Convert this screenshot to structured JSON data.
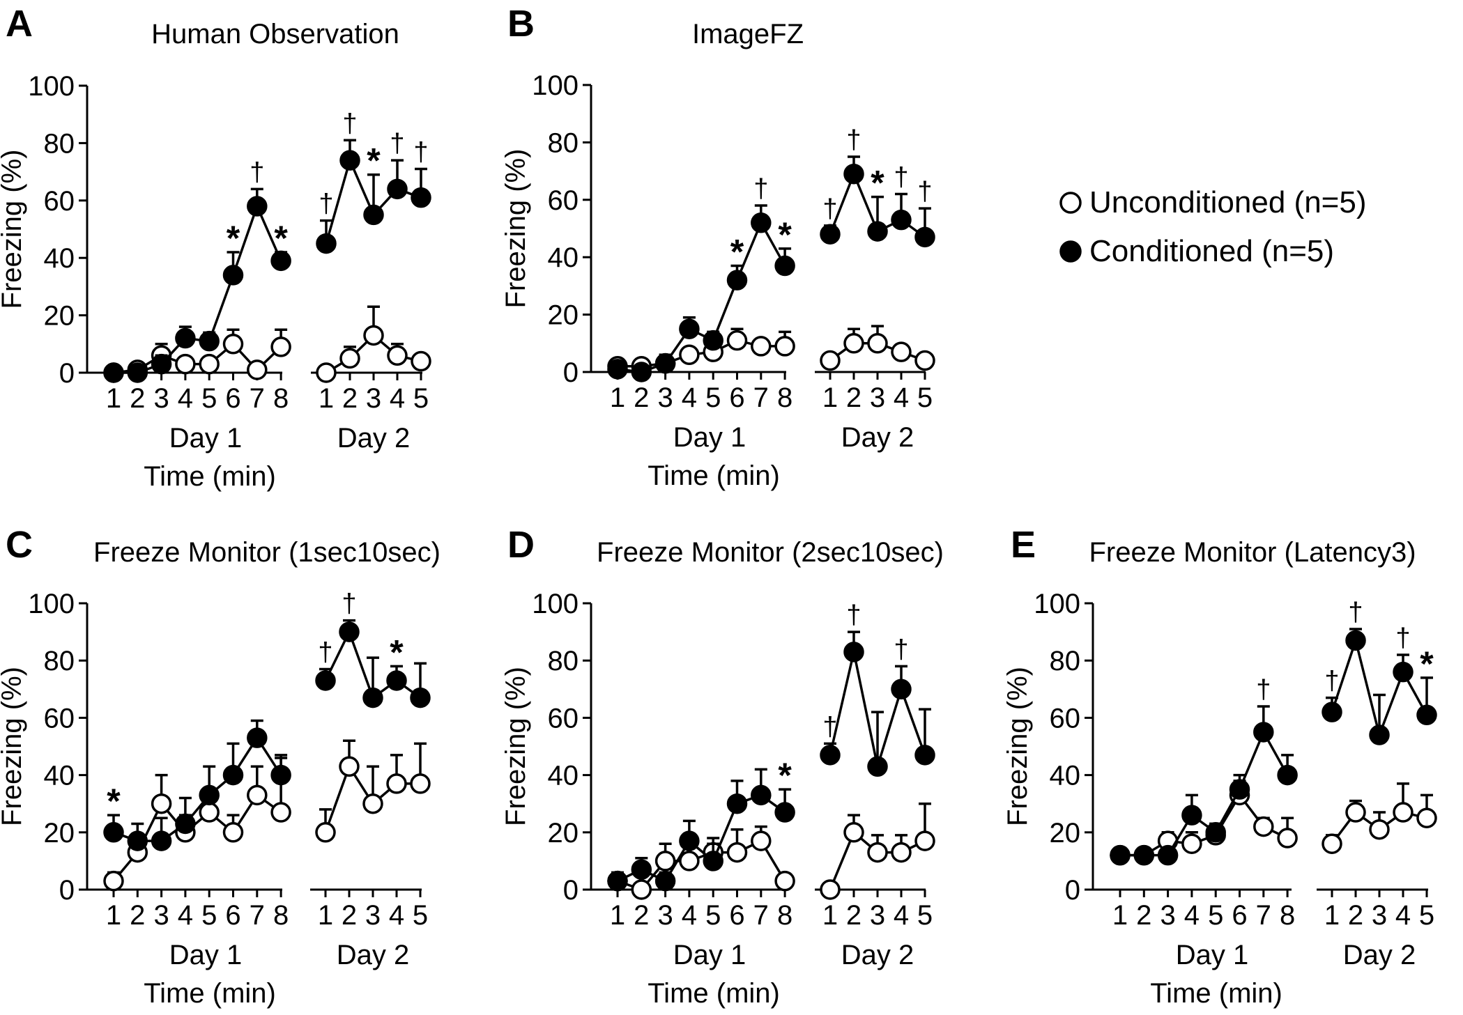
{
  "figure": {
    "legend": {
      "unconditioned": "Unconditioned (n=5)",
      "conditioned": "Conditioned (n=5)"
    },
    "colors": {
      "ink": "#000000",
      "open_fill": "#ffffff",
      "closed_fill": "#000000"
    }
  },
  "chart_data": [
    {
      "type": "line",
      "panel": "A",
      "title": "Human Observation",
      "ylabel": "Freezing (%)",
      "xlabel": "Time (min)",
      "ylim": [
        0,
        100
      ],
      "yticks": [
        "0",
        "20",
        "40",
        "60",
        "80",
        "100"
      ],
      "groups": [
        {
          "label": "Day 1",
          "ticks": [
            "1",
            "2",
            "3",
            "4",
            "5",
            "6",
            "7",
            "8"
          ]
        },
        {
          "label": "Day 2",
          "ticks": [
            "1",
            "2",
            "3",
            "4",
            "5"
          ]
        }
      ],
      "series": [
        {
          "name": "Unconditioned (n=5)",
          "day1": {
            "values": [
              0,
              1,
              6,
              3,
              3,
              10,
              1,
              9
            ],
            "errors": [
              0,
              2,
              4,
              2,
              1,
              5,
              2,
              6
            ]
          },
          "day2": {
            "values": [
              0,
              5,
              13,
              6,
              4
            ],
            "errors": [
              0,
              4,
              10,
              4,
              2
            ]
          }
        },
        {
          "name": "Conditioned (n=5)",
          "day1": {
            "values": [
              0,
              0,
              3,
              12,
              11,
              34,
              58,
              39
            ],
            "errors": [
              0,
              0,
              3,
              4,
              3,
              8,
              6,
              3
            ]
          },
          "day2": {
            "values": [
              45,
              74,
              55,
              64,
              61
            ],
            "errors": [
              8,
              7,
              14,
              10,
              10
            ]
          }
        }
      ],
      "annotations": [
        {
          "day": 1,
          "point": 6,
          "symbol": "*"
        },
        {
          "day": 1,
          "point": 7,
          "symbol": "†"
        },
        {
          "day": 1,
          "point": 8,
          "symbol": "*"
        },
        {
          "day": 2,
          "point": 1,
          "symbol": "†"
        },
        {
          "day": 2,
          "point": 2,
          "symbol": "†"
        },
        {
          "day": 2,
          "point": 3,
          "symbol": "*"
        },
        {
          "day": 2,
          "point": 4,
          "symbol": "†"
        },
        {
          "day": 2,
          "point": 5,
          "symbol": "†"
        }
      ]
    },
    {
      "type": "line",
      "panel": "B",
      "title": "ImageFZ",
      "ylabel": "Freezing (%)",
      "xlabel": "Time (min)",
      "ylim": [
        0,
        100
      ],
      "yticks": [
        "0",
        "20",
        "40",
        "60",
        "80",
        "100"
      ],
      "groups": [
        {
          "label": "Day 1",
          "ticks": [
            "1",
            "2",
            "3",
            "4",
            "5",
            "6",
            "7",
            "8"
          ]
        },
        {
          "label": "Day 2",
          "ticks": [
            "1",
            "2",
            "3",
            "4",
            "5"
          ]
        }
      ],
      "series": [
        {
          "name": "Unconditioned (n=5)",
          "day1": {
            "values": [
              2,
              2,
              3,
              6,
              7,
              11,
              9,
              9
            ],
            "errors": [
              1,
              1,
              2,
              2,
              2,
              4,
              2,
              5
            ]
          },
          "day2": {
            "values": [
              4,
              10,
              10,
              7,
              4
            ],
            "errors": [
              1,
              5,
              6,
              2,
              2
            ]
          }
        },
        {
          "name": "Conditioned (n=5)",
          "day1": {
            "values": [
              1,
              0,
              3,
              15,
              11,
              32,
              52,
              37
            ],
            "errors": [
              1,
              0,
              3,
              4,
              3,
              5,
              6,
              6
            ]
          },
          "day2": {
            "values": [
              48,
              69,
              49,
              53,
              47
            ],
            "errors": [
              3,
              6,
              12,
              9,
              10
            ]
          }
        }
      ],
      "annotations": [
        {
          "day": 1,
          "point": 6,
          "symbol": "*"
        },
        {
          "day": 1,
          "point": 7,
          "symbol": "†"
        },
        {
          "day": 1,
          "point": 8,
          "symbol": "*"
        },
        {
          "day": 2,
          "point": 1,
          "symbol": "†"
        },
        {
          "day": 2,
          "point": 2,
          "symbol": "†"
        },
        {
          "day": 2,
          "point": 3,
          "symbol": "*"
        },
        {
          "day": 2,
          "point": 4,
          "symbol": "†"
        },
        {
          "day": 2,
          "point": 5,
          "symbol": "†"
        }
      ]
    },
    {
      "type": "line",
      "panel": "C",
      "title": "Freeze Monitor (1sec10sec)",
      "ylabel": "Freezing (%)",
      "xlabel": "Time (min)",
      "ylim": [
        0,
        100
      ],
      "yticks": [
        "0",
        "20",
        "40",
        "60",
        "80",
        "100"
      ],
      "groups": [
        {
          "label": "Day 1",
          "ticks": [
            "1",
            "2",
            "3",
            "4",
            "5",
            "6",
            "7",
            "8"
          ]
        },
        {
          "label": "Day 2",
          "ticks": [
            "1",
            "2",
            "3",
            "4",
            "5"
          ]
        }
      ],
      "series": [
        {
          "name": "Unconditioned (n=5)",
          "day1": {
            "values": [
              3,
              13,
              30,
              20,
              27,
              20,
              33,
              27
            ],
            "errors": [
              3,
              4,
              10,
              6,
              8,
              6,
              10,
              19
            ]
          },
          "day2": {
            "values": [
              20,
              43,
              30,
              37,
              37
            ],
            "errors": [
              8,
              9,
              13,
              10,
              14
            ]
          }
        },
        {
          "name": "Conditioned (n=5)",
          "day1": {
            "values": [
              20,
              17,
              17,
              23,
              33,
              40,
              53,
              40
            ],
            "errors": [
              6,
              6,
              8,
              9,
              10,
              11,
              6,
              7
            ]
          },
          "day2": {
            "values": [
              73,
              90,
              67,
              73,
              67
            ],
            "errors": [
              4,
              4,
              14,
              5,
              12
            ]
          }
        }
      ],
      "annotations": [
        {
          "day": 1,
          "point": 1,
          "symbol": "*"
        },
        {
          "day": 2,
          "point": 1,
          "symbol": "†"
        },
        {
          "day": 2,
          "point": 2,
          "symbol": "†"
        },
        {
          "day": 2,
          "point": 4,
          "symbol": "*"
        }
      ]
    },
    {
      "type": "line",
      "panel": "D",
      "title": "Freeze Monitor (2sec10sec)",
      "ylabel": "Freezing (%)",
      "xlabel": "Time (min)",
      "ylim": [
        0,
        100
      ],
      "yticks": [
        "0",
        "20",
        "40",
        "60",
        "80",
        "100"
      ],
      "groups": [
        {
          "label": "Day 1",
          "ticks": [
            "1",
            "2",
            "3",
            "4",
            "5",
            "6",
            "7",
            "8"
          ]
        },
        {
          "label": "Day 2",
          "ticks": [
            "1",
            "2",
            "3",
            "4",
            "5"
          ]
        }
      ],
      "series": [
        {
          "name": "Unconditioned (n=5)",
          "day1": {
            "values": [
              3,
              0,
              10,
              10,
              13,
              13,
              17,
              3
            ],
            "errors": [
              2,
              0,
              6,
              5,
              5,
              8,
              5,
              2
            ]
          },
          "day2": {
            "values": [
              0,
              20,
              13,
              13,
              17
            ],
            "errors": [
              0,
              6,
              6,
              6,
              13
            ]
          }
        },
        {
          "name": "Conditioned (n=5)",
          "day1": {
            "values": [
              3,
              7,
              3,
              17,
              10,
              30,
              33,
              27
            ],
            "errors": [
              3,
              4,
              3,
              7,
              6,
              8,
              9,
              8
            ]
          },
          "day2": {
            "values": [
              47,
              83,
              43,
              70,
              47
            ],
            "errors": [
              4,
              7,
              19,
              8,
              16
            ]
          }
        }
      ],
      "annotations": [
        {
          "day": 1,
          "point": 8,
          "symbol": "*"
        },
        {
          "day": 2,
          "point": 1,
          "symbol": "†"
        },
        {
          "day": 2,
          "point": 2,
          "symbol": "†"
        },
        {
          "day": 2,
          "point": 4,
          "symbol": "†"
        }
      ]
    },
    {
      "type": "line",
      "panel": "E",
      "title": "Freeze Monitor (Latency3)",
      "ylabel": "Freezing (%)",
      "xlabel": "Time (min)",
      "ylim": [
        0,
        100
      ],
      "yticks": [
        "0",
        "20",
        "40",
        "60",
        "80",
        "100"
      ],
      "groups": [
        {
          "label": "Day 1",
          "ticks": [
            "1",
            "2",
            "3",
            "4",
            "5",
            "6",
            "7",
            "8"
          ]
        },
        {
          "label": "Day 2",
          "ticks": [
            "1",
            "2",
            "3",
            "4",
            "5"
          ]
        }
      ],
      "series": [
        {
          "name": "Unconditioned (n=5)",
          "day1": {
            "values": [
              12,
              12,
              17,
              16,
              19,
              33,
              22,
              18
            ],
            "errors": [
              1,
              1,
              3,
              4,
              4,
              5,
              3,
              7
            ]
          },
          "day2": {
            "values": [
              16,
              27,
              21,
              27,
              25
            ],
            "errors": [
              3,
              4,
              6,
              10,
              8
            ]
          }
        },
        {
          "name": "Conditioned (n=5)",
          "day1": {
            "values": [
              12,
              12,
              12,
              26,
              20,
              35,
              55,
              40
            ],
            "errors": [
              1,
              1,
              1,
              7,
              3,
              5,
              9,
              7
            ]
          },
          "day2": {
            "values": [
              62,
              87,
              54,
              76,
              61
            ],
            "errors": [
              5,
              4,
              14,
              6,
              13
            ]
          }
        }
      ],
      "annotations": [
        {
          "day": 1,
          "point": 7,
          "symbol": "†"
        },
        {
          "day": 2,
          "point": 1,
          "symbol": "†"
        },
        {
          "day": 2,
          "point": 2,
          "symbol": "†"
        },
        {
          "day": 2,
          "point": 4,
          "symbol": "†"
        },
        {
          "day": 2,
          "point": 5,
          "symbol": "*"
        }
      ]
    }
  ]
}
